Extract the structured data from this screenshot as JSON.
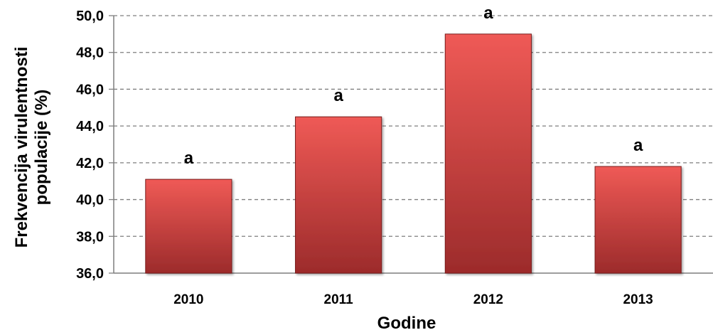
{
  "chart_data": {
    "type": "bar",
    "categories": [
      "2010",
      "2011",
      "2012",
      "2013"
    ],
    "values": [
      41.1,
      44.5,
      49.0,
      41.8
    ],
    "data_labels": [
      "a",
      "a",
      "a",
      "a"
    ],
    "title": "",
    "xlabel": "Godine",
    "ylabel_lines": [
      "Frekvencija virulentnosti",
      "populacije (%)"
    ],
    "ylim": [
      36.0,
      50.0
    ],
    "yticks": [
      "36,0",
      "38,0",
      "40,0",
      "42,0",
      "44,0",
      "46,0",
      "48,0",
      "50,0"
    ],
    "grid": true,
    "legend": "none",
    "colors": {
      "bar_light": "#ef5a56",
      "bar_dark": "#9c2b2b",
      "bar_edge": "#7a1e1e",
      "grid": "#7f7f7f",
      "axis": "#7f7f7f"
    }
  }
}
